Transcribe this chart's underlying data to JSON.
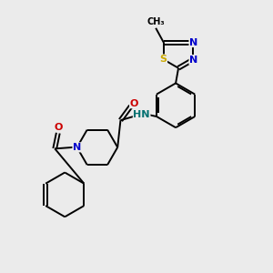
{
  "background_color": "#ebebeb",
  "bond_color": "#000000",
  "atom_colors": {
    "N": "#0000cc",
    "O": "#cc0000",
    "S": "#ccaa00",
    "H": "#007070",
    "C": "#000000"
  },
  "lw": 1.4,
  "fs": 8.0
}
